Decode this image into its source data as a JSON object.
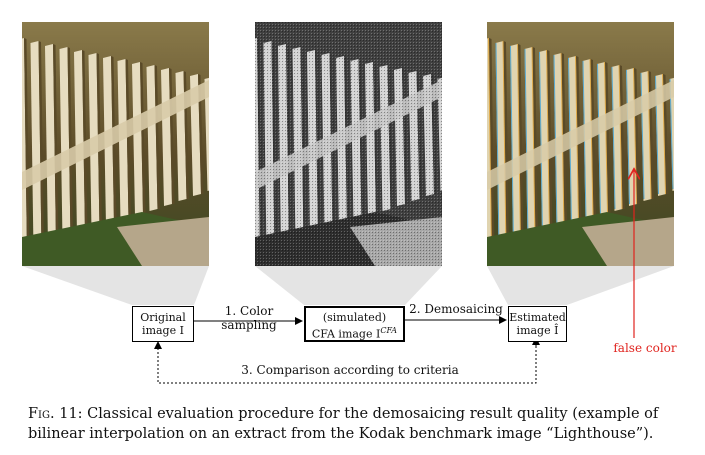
{
  "blocks": {
    "original": {
      "line1": "Original",
      "line2": "image I"
    },
    "cfa": {
      "line1": "(simulated)",
      "line2": "CFA image I",
      "sup": "CFA"
    },
    "estimated": {
      "line1": "Estimated",
      "line2": "image Î"
    }
  },
  "arrows": {
    "step1": {
      "line1": "1. Color",
      "line2": "sampling"
    },
    "step2": "2. Demosaicing",
    "step3": "3. Comparison according to criteria"
  },
  "annotation": "false color",
  "caption": {
    "fig_label": "Fig. 11:",
    "text": "Classical evaluation procedure for the demosaicing result quality (example of bilinear interpolation on an extract from the Kodak benchmark image “Lighthouse”)."
  },
  "colors": {
    "annotation": "#e0231e",
    "fence_light": "#e6dcc0",
    "fence_dark": "#5a4a28",
    "grass": "#4a6a2a"
  }
}
